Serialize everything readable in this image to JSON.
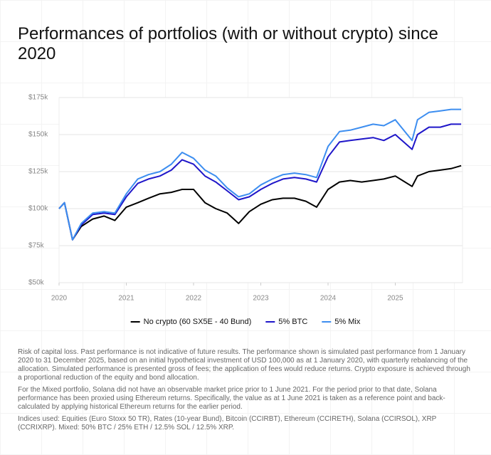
{
  "chart_data": {
    "type": "line",
    "title": "Performances of portfolios (with or without crypto) since 2020",
    "x": [
      2020,
      2020.08,
      2020.2,
      2020.33,
      2020.5,
      2020.67,
      2020.83,
      2021,
      2021.17,
      2021.33,
      2021.5,
      2021.67,
      2021.83,
      2022,
      2022.17,
      2022.33,
      2022.5,
      2022.67,
      2022.83,
      2023,
      2023.17,
      2023.33,
      2023.5,
      2023.67,
      2023.83,
      2024,
      2024.17,
      2024.33,
      2024.5,
      2024.67,
      2024.83,
      2025,
      2025.25,
      2025.33,
      2025.5,
      2025.67,
      2025.83,
      2025.98
    ],
    "series": [
      {
        "name": "No crypto (60 SX5E - 40 Bund)",
        "color": "#000000",
        "values": [
          100,
          104,
          79,
          88,
          93,
          95,
          92,
          101,
          104,
          107,
          110,
          111,
          113,
          113,
          104,
          100,
          97,
          90,
          98,
          103,
          106,
          107,
          107,
          105,
          101,
          113,
          118,
          119,
          118,
          119,
          120,
          122,
          115,
          122,
          125,
          126,
          127,
          129
        ]
      },
      {
        "name": "5% BTC",
        "color": "#1f16c9",
        "values": [
          100,
          104,
          79,
          89,
          96,
          97,
          96,
          108,
          117,
          120,
          122,
          126,
          133,
          130,
          122,
          118,
          112,
          106,
          108,
          113,
          117,
          120,
          121,
          120,
          118,
          135,
          145,
          146,
          147,
          148,
          146,
          150,
          140,
          150,
          155,
          155,
          157,
          157
        ]
      },
      {
        "name": "5% Mix",
        "color": "#3d8ef0",
        "values": [
          100,
          104,
          79,
          90,
          97,
          98,
          97,
          110,
          120,
          123,
          125,
          130,
          138,
          134,
          126,
          122,
          114,
          108,
          110,
          116,
          120,
          123,
          124,
          123,
          121,
          142,
          152,
          153,
          155,
          157,
          156,
          160,
          146,
          160,
          165,
          166,
          167,
          167
        ]
      }
    ],
    "xlim": [
      2020,
      2026
    ],
    "xticks": [
      2020,
      2021,
      2022,
      2023,
      2024,
      2025
    ],
    "ylim": [
      50,
      175
    ],
    "yticks": [
      {
        "value": 50,
        "label": "$50k"
      },
      {
        "value": 75,
        "label": "$75k"
      },
      {
        "value": 100,
        "label": "$100k"
      },
      {
        "value": 125,
        "label": "$125k"
      },
      {
        "value": 150,
        "label": "$150k"
      },
      {
        "value": 175,
        "label": "$175k"
      }
    ],
    "grid": true,
    "legend": "bottom",
    "notes": [
      "Risk of capital loss. Past performance is not indicative of future results. The performance shown is simulated past performance from 1 January 2020 to 31 December 2025, based on an initial hypothetical investment of USD 100,000 as at 1 January 2020, with quarterly rebalancing of the allocation. Simulated performance is presented gross of fees; the application of fees would reduce returns. Crypto exposure is achieved through a proportional reduction of the equity and bond allocation.",
      "For the Mixed portfolio, Solana did not have an observable market price prior to 1 June 2021. For the period prior to that date, Solana performance has been proxied using Ethereum returns. Specifically, the value as at 1 June 2021 is taken as a reference point and back-calculated by applying historical Ethereum returns for the earlier period.",
      "Indices used: Equities (Euro Stoxx 50 TR), Rates (10-year Bund), Bitcoin (CCIRBT), Ethereum (CCIRETH), Solana (CCIRSOL), XRP (CCRIXRP). Mixed: 50% BTC / 25% ETH / 12.5% SOL / 12.5% XRP."
    ]
  }
}
